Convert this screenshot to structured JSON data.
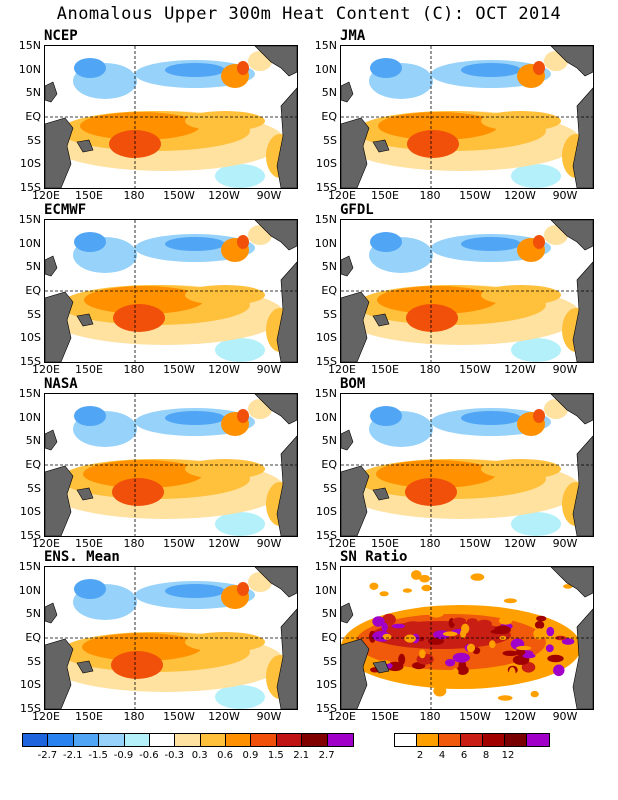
{
  "title": "Anomalous Upper 300m Heat Content (C): OCT 2014",
  "panels": [
    {
      "label": "NCEP",
      "type": "anomaly"
    },
    {
      "label": "JMA",
      "type": "anomaly"
    },
    {
      "label": "ECMWF",
      "type": "anomaly"
    },
    {
      "label": "GFDL",
      "type": "anomaly"
    },
    {
      "label": "NASA",
      "type": "anomaly"
    },
    {
      "label": "BOM",
      "type": "anomaly"
    },
    {
      "label": "ENS. Mean",
      "type": "anomaly"
    },
    {
      "label": "SN Ratio",
      "type": "snr"
    }
  ],
  "lat_labels": [
    "15N",
    "10N",
    "5N",
    "EQ",
    "5S",
    "10S",
    "15S"
  ],
  "lon_labels": [
    "120E",
    "150E",
    "180",
    "150W",
    "120W",
    "90W"
  ],
  "anomaly_colorbar": {
    "colors": [
      "#1e64dc",
      "#2882f0",
      "#50a5f5",
      "#96d2fa",
      "#b4f0fa",
      "#ffffff",
      "#ffe1a0",
      "#ffc03c",
      "#ff9100",
      "#f0500a",
      "#c01414",
      "#800000",
      "#a000c8"
    ],
    "labels": [
      "-2.7",
      "-2.1",
      "-1.5",
      "-0.9",
      "-0.6",
      "-0.3",
      "0.3",
      "0.6",
      "0.9",
      "1.5",
      "2.1",
      "2.7"
    ]
  },
  "snr_colorbar": {
    "colors": [
      "#ffffff",
      "#ffa000",
      "#f05a0a",
      "#c81e14",
      "#a00000",
      "#780000",
      "#a000c8"
    ],
    "labels": [
      "2",
      "4",
      "6",
      "8",
      "12"
    ]
  },
  "land_color": "#646464"
}
